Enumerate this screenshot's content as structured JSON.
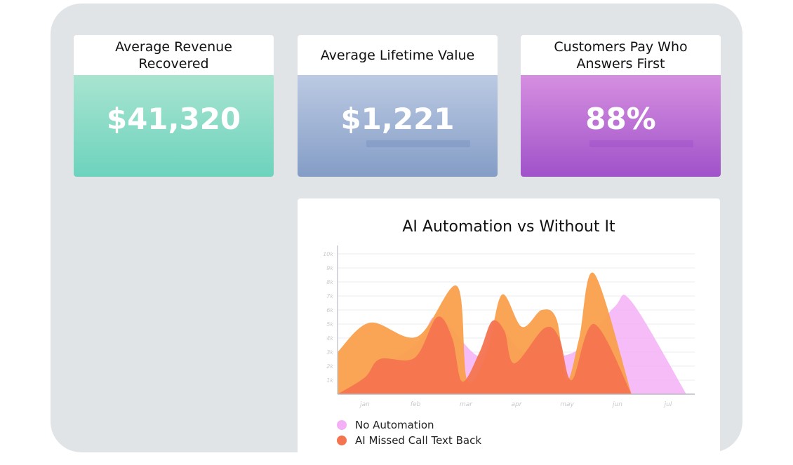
{
  "cards": [
    {
      "title": "Average Revenue Recovered",
      "value": "$41,320"
    },
    {
      "title": "Average Lifetime Value",
      "value": "$1,221"
    },
    {
      "title": "Customers Pay Who Answers First",
      "value": "88%"
    }
  ],
  "chart_data": {
    "type": "area",
    "title": "AI Automation vs Without It",
    "xlabel": "",
    "ylabel": "",
    "categories": [
      "jan",
      "feb",
      "mar",
      "apr",
      "may",
      "jun",
      "jul"
    ],
    "yticks": [
      "1k",
      "2k",
      "3k",
      "4k",
      "5k",
      "6k",
      "7k",
      "8k",
      "9k",
      "10k"
    ],
    "ylim": [
      0,
      10
    ],
    "xlim": [
      -0.55,
      6.55
    ],
    "grid": true,
    "legend_position": "bottom-left",
    "series": [
      {
        "name": "No Automation",
        "color": "#f4b0f7",
        "legend": true,
        "points": [
          [
            -0.55,
            0
          ],
          [
            1.0,
            3.5
          ],
          [
            1.45,
            5.5
          ],
          [
            2.3,
            2.7
          ],
          [
            2.6,
            5.3
          ],
          [
            3.2,
            3
          ],
          [
            4.2,
            3
          ],
          [
            5.0,
            6.2
          ],
          [
            5.35,
            6.6
          ],
          [
            6.45,
            0
          ]
        ]
      },
      {
        "name": "",
        "color": "#f9a04c",
        "legend": false,
        "points": [
          [
            -0.55,
            3
          ],
          [
            0.1,
            5.1
          ],
          [
            1.05,
            4.1
          ],
          [
            1.85,
            7.7
          ],
          [
            2.05,
            1.0
          ],
          [
            2.45,
            3.0
          ],
          [
            2.75,
            7.1
          ],
          [
            3.15,
            4.8
          ],
          [
            3.55,
            6.0
          ],
          [
            3.85,
            5.3
          ],
          [
            4.05,
            1.0
          ],
          [
            4.3,
            4.0
          ],
          [
            4.6,
            8.6
          ],
          [
            5.35,
            0
          ]
        ]
      },
      {
        "name": "AI Missed Call Text Back",
        "color": "#f4744f",
        "legend": true,
        "points": [
          [
            -0.55,
            0
          ],
          [
            0.0,
            1.2
          ],
          [
            0.3,
            2.5
          ],
          [
            1.0,
            2.6
          ],
          [
            1.45,
            5.5
          ],
          [
            1.75,
            4
          ],
          [
            1.95,
            0.9
          ],
          [
            2.3,
            3
          ],
          [
            2.55,
            5.2
          ],
          [
            2.8,
            4.5
          ],
          [
            3.0,
            2.2
          ],
          [
            3.6,
            4.7
          ],
          [
            3.9,
            4
          ],
          [
            4.15,
            1
          ],
          [
            4.6,
            5
          ],
          [
            5.35,
            0
          ]
        ]
      }
    ]
  },
  "legend": [
    {
      "label": "No Automation",
      "color": "#f4b0f7"
    },
    {
      "label": "AI Missed Call Text Back",
      "color": "#f4744f"
    }
  ]
}
